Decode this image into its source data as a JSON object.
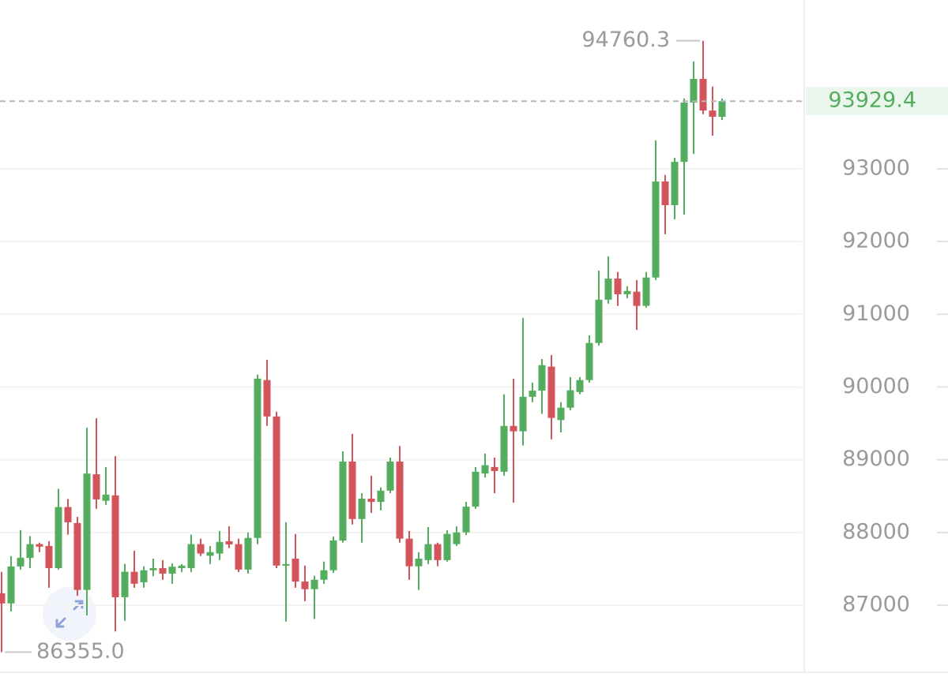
{
  "chart_data": {
    "type": "candlestick",
    "open": [
      87165,
      87024,
      87533,
      87650,
      87840,
      87815,
      87510,
      88350,
      88130,
      87210,
      88800,
      88435,
      88510,
      87110,
      87460,
      87315,
      87480,
      87510,
      87435,
      87510,
      87510,
      87840,
      87680,
      87710,
      87880,
      87840,
      87490,
      87925,
      90095,
      89595,
      87545,
      87640,
      87325,
      87220,
      87350,
      87480,
      87890,
      88975,
      88185,
      88465,
      88420,
      88575,
      88975,
      87915,
      87535,
      87620,
      87840,
      87620,
      87840,
      88000,
      88355,
      88810,
      88900,
      88835,
      89465,
      89390,
      89865,
      89950,
      90280,
      89545,
      89715,
      89930,
      90095,
      90605,
      91200,
      91490,
      91275,
      91310,
      91115,
      91505,
      92825,
      92500,
      93095,
      93910,
      94235,
      93800,
      93715
    ],
    "high": [
      87458,
      87675,
      88033,
      87950,
      87860,
      87880,
      88600,
      88460,
      88215,
      89440,
      89570,
      88900,
      89050,
      87570,
      87750,
      87535,
      87640,
      87620,
      87575,
      87565,
      87970,
      87915,
      87815,
      88020,
      88085,
      87915,
      88000,
      90170,
      90375,
      89660,
      88140,
      87980,
      87545,
      87405,
      87600,
      87945,
      89115,
      89355,
      88540,
      88780,
      88620,
      89030,
      89190,
      88020,
      87730,
      88075,
      87860,
      88030,
      88085,
      88420,
      88900,
      89085,
      89030,
      89900,
      90115,
      90950,
      90060,
      90385,
      90440,
      89790,
      90135,
      90135,
      90710,
      91600,
      91795,
      91580,
      91385,
      91470,
      91580,
      93390,
      92915,
      93150,
      93965,
      94475,
      94760.3,
      94130,
      93965
    ],
    "low": [
      86355,
      86915,
      87490,
      87510,
      87730,
      87240,
      87490,
      87970,
      87130,
      86860,
      88325,
      88380,
      86640,
      86785,
      87240,
      87240,
      87400,
      87350,
      87295,
      87455,
      87455,
      87675,
      87565,
      87620,
      87785,
      87455,
      87435,
      87840,
      89465,
      87510,
      86775,
      87240,
      87055,
      86810,
      87295,
      87445,
      87860,
      88110,
      87860,
      88270,
      88305,
      88540,
      87860,
      87350,
      87210,
      87565,
      87535,
      87600,
      87815,
      87965,
      88325,
      88755,
      88540,
      88780,
      88410,
      89195,
      89790,
      89630,
      89280,
      89375,
      89680,
      89900,
      90060,
      90570,
      91145,
      91115,
      91220,
      90785,
      91090,
      91470,
      92100,
      92305,
      92370,
      93205,
      93750,
      93455,
      93670
    ],
    "close": [
      87024,
      87533,
      87653,
      87840,
      87805,
      87510,
      88350,
      88140,
      87210,
      88810,
      88455,
      88520,
      87110,
      87460,
      87295,
      87480,
      87510,
      87435,
      87530,
      87545,
      87840,
      87710,
      87730,
      87870,
      87835,
      87490,
      87925,
      90115,
      89595,
      87545,
      87565,
      87325,
      87220,
      87350,
      87480,
      87890,
      88975,
      88185,
      88465,
      88420,
      88575,
      88975,
      87915,
      87535,
      87640,
      87840,
      87620,
      87980,
      88000,
      88355,
      88835,
      88925,
      88845,
      89465,
      89390,
      89865,
      89950,
      90300,
      89575,
      89715,
      89955,
      90095,
      90605,
      91200,
      91490,
      91275,
      91320,
      91115,
      91505,
      92825,
      92500,
      93095,
      93910,
      94235,
      93800,
      93715,
      93929.4
    ],
    "up_color": "#55ad5f",
    "down_color": "#d4545b",
    "ylim": [
      86100,
      95320
    ],
    "yticks": [
      87000,
      88000,
      89000,
      90000,
      91000,
      92000,
      93000
    ],
    "grid": true,
    "max_label": 94760.3,
    "min_label": {
      "value": 86355,
      "label": "86355.0"
    },
    "last_price": 93929.4
  }
}
